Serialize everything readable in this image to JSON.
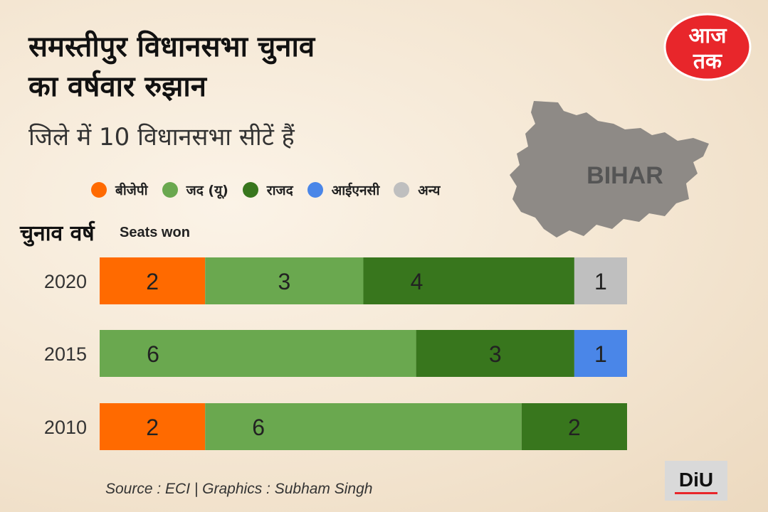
{
  "header": {
    "title_line1": "समस्तीपुर विधानसभा चुनाव",
    "title_line2": "का वर्षवार रुझान",
    "subtitle": "जिले में 10 विधानसभा सीटें हैं"
  },
  "map": {
    "label": "BIHAR"
  },
  "logos": {
    "aajtak": "आज तक",
    "diu": "DiU"
  },
  "legend": [
    {
      "label": "बीजेपी",
      "color": "#ff6a00"
    },
    {
      "label": "जद (यू)",
      "color": "#6aa84f"
    },
    {
      "label": "राजद",
      "color": "#38761d"
    },
    {
      "label": "आईएनसी",
      "color": "#4a86e8"
    },
    {
      "label": "अन्य",
      "color": "#bfbfbf"
    }
  ],
  "chart_data": {
    "type": "bar",
    "orientation": "horizontal",
    "stacked": true,
    "ylabel": "चुनाव वर्ष",
    "xlabel": "Seats won",
    "xlim": [
      0,
      10
    ],
    "categories": [
      "2020",
      "2015",
      "2010"
    ],
    "series": [
      {
        "name": "बीजेपी",
        "color": "#ff6a00",
        "values": [
          2,
          0,
          2
        ]
      },
      {
        "name": "जद (यू)",
        "color": "#6aa84f",
        "values": [
          3,
          6,
          6
        ]
      },
      {
        "name": "राजद",
        "color": "#38761d",
        "values": [
          4,
          3,
          2
        ]
      },
      {
        "name": "आईएनसी",
        "color": "#4a86e8",
        "values": [
          0,
          1,
          0
        ]
      },
      {
        "name": "अन्य",
        "color": "#bfbfbf",
        "values": [
          1,
          0,
          0
        ]
      }
    ],
    "grid": false,
    "legend_position": "top-left"
  },
  "source": "Source : ECI | Graphics : Subham Singh"
}
